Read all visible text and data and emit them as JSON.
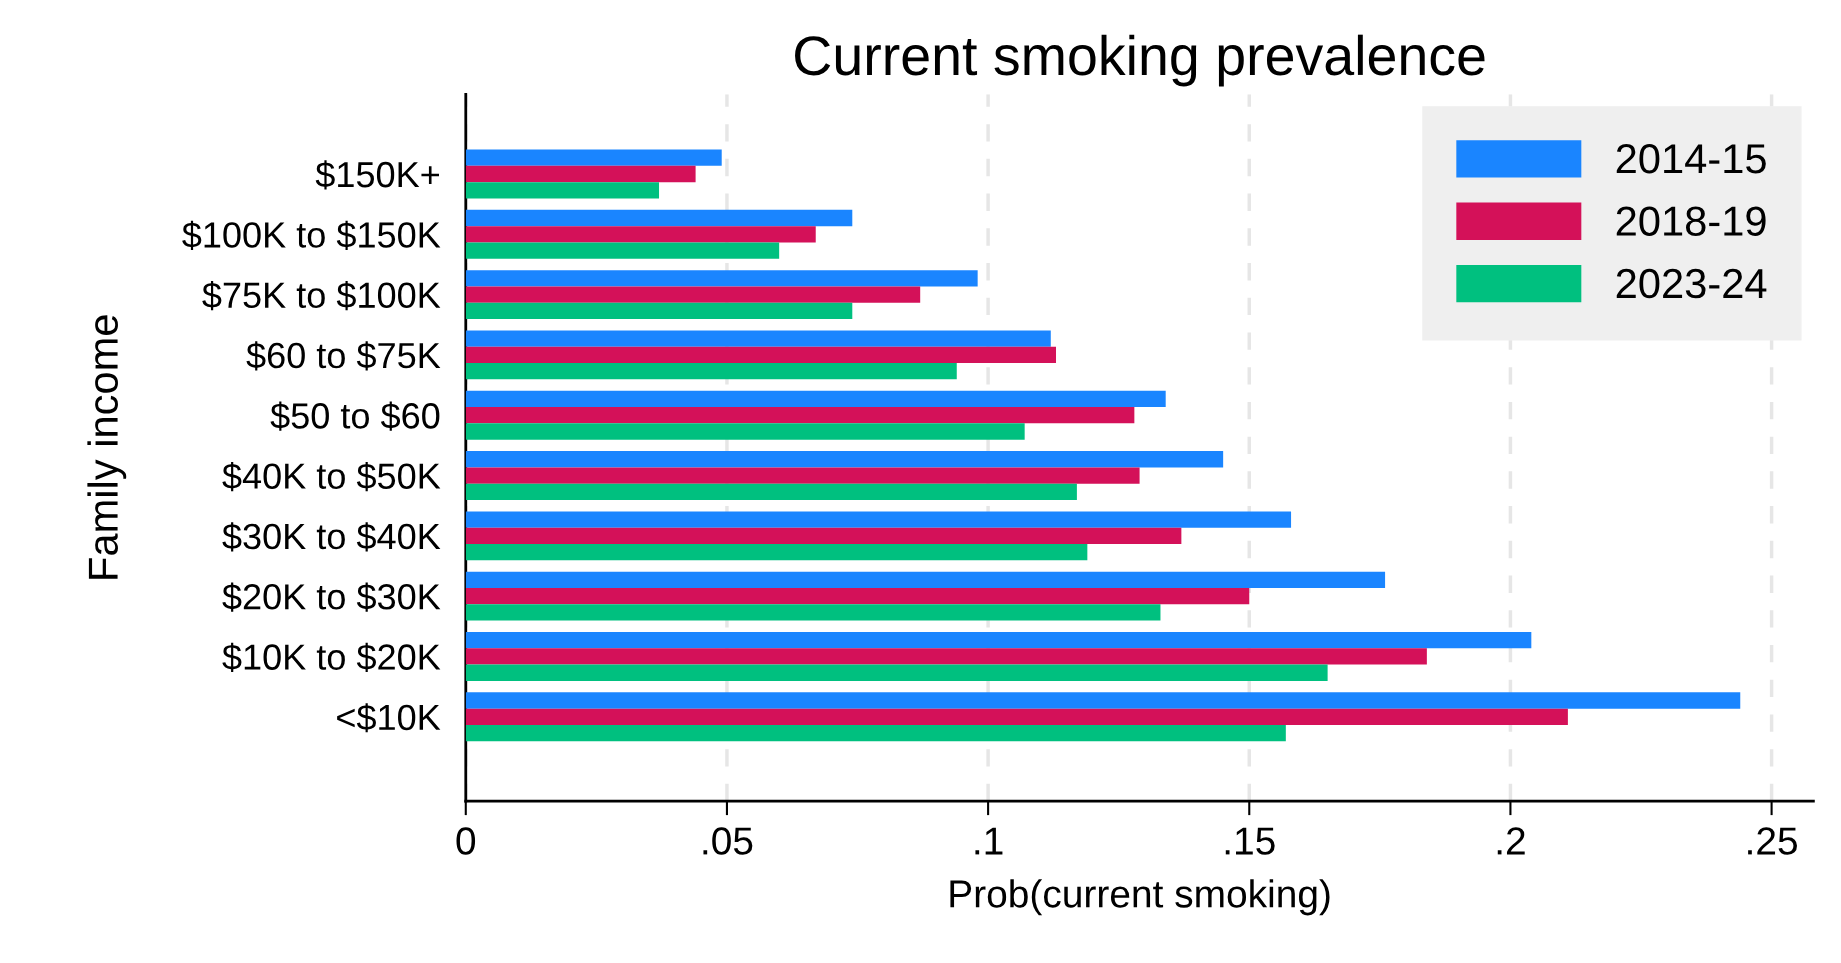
{
  "chart_data": {
    "type": "bar",
    "orientation": "horizontal",
    "title": "Current smoking prevalence",
    "xlabel": "Prob(current smoking)",
    "ylabel": "Family income",
    "categories": [
      "$150K+",
      "$100K to $150K",
      "$75K to $100K",
      "$60 to $75K",
      "$50 to $60",
      "$40K to $50K",
      "$30K to $40K",
      "$20K to $30K",
      "$10K to $20K",
      "<$10K"
    ],
    "series": [
      {
        "name": "2014-15",
        "color": "#1a85ff",
        "values": [
          0.049,
          0.074,
          0.098,
          0.112,
          0.134,
          0.145,
          0.158,
          0.176,
          0.204,
          0.244
        ]
      },
      {
        "name": "2018-19",
        "color": "#d41159",
        "values": [
          0.044,
          0.067,
          0.087,
          0.113,
          0.128,
          0.129,
          0.137,
          0.15,
          0.184,
          0.211
        ]
      },
      {
        "name": "2023-24",
        "color": "#00c07f",
        "values": [
          0.037,
          0.06,
          0.074,
          0.094,
          0.107,
          0.117,
          0.119,
          0.133,
          0.165,
          0.157
        ]
      }
    ],
    "xlim": [
      0,
      0.258
    ],
    "xticks": [
      0,
      {
        "value": 0.05,
        "label": ".05"
      },
      {
        "value": 0.1,
        "label": ".1"
      },
      {
        "value": 0.15,
        "label": ".15"
      },
      {
        "value": 0.2,
        "label": ".2"
      },
      {
        "value": 0.25,
        "label": ".25"
      }
    ],
    "grid": "x",
    "legend": "top right"
  }
}
